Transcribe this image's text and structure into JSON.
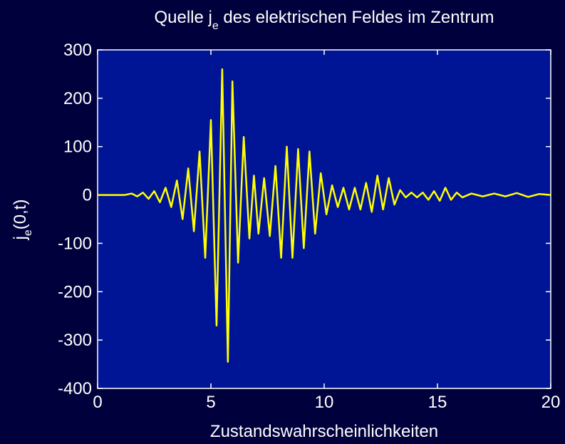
{
  "chart_data": {
    "type": "line",
    "title": [
      "Quelle j",
      "e",
      " des elektrischen Feldes im Zentrum"
    ],
    "xlabel": "Zustandswahrscheinlichkeiten",
    "ylabel": [
      "j",
      "e",
      "(0,t)"
    ],
    "color": "#ffff00",
    "x": [
      0,
      1.2,
      1.5,
      1.75,
      2.0,
      2.25,
      2.5,
      2.75,
      3.0,
      3.25,
      3.5,
      3.75,
      4.0,
      4.25,
      4.5,
      4.75,
      5.0,
      5.25,
      5.5,
      5.75,
      5.95,
      6.2,
      6.45,
      6.7,
      6.9,
      7.1,
      7.35,
      7.6,
      7.85,
      8.1,
      8.35,
      8.6,
      8.85,
      9.1,
      9.35,
      9.6,
      9.85,
      10.1,
      10.35,
      10.6,
      10.85,
      11.1,
      11.35,
      11.6,
      11.85,
      12.1,
      12.35,
      12.6,
      12.85,
      13.1,
      13.35,
      13.6,
      13.85,
      14.1,
      14.35,
      14.6,
      14.85,
      15.1,
      15.35,
      15.6,
      15.85,
      16.1,
      16.5,
      17.0,
      17.5,
      18.0,
      18.5,
      19.0,
      19.5,
      20
    ],
    "values": [
      0,
      0,
      3,
      -3,
      5,
      -8,
      8,
      -15,
      15,
      -25,
      30,
      -50,
      55,
      -75,
      90,
      -130,
      155,
      -270,
      260,
      -345,
      235,
      -140,
      120,
      -90,
      40,
      -80,
      35,
      -85,
      60,
      -130,
      100,
      -130,
      95,
      -110,
      90,
      -80,
      45,
      -40,
      20,
      -25,
      15,
      -30,
      15,
      -30,
      25,
      -35,
      40,
      -30,
      35,
      -20,
      10,
      -5,
      5,
      -5,
      5,
      -10,
      8,
      -12,
      15,
      -10,
      5,
      -5,
      3,
      -3,
      3,
      -3,
      4,
      -4,
      2,
      0
    ],
    "xlim": [
      0,
      20
    ],
    "xticks": [
      0,
      5,
      10,
      15,
      20
    ],
    "ylim": [
      -400,
      300
    ],
    "yticks": [
      -400,
      -300,
      -200,
      -100,
      0,
      100,
      200,
      300
    ]
  }
}
